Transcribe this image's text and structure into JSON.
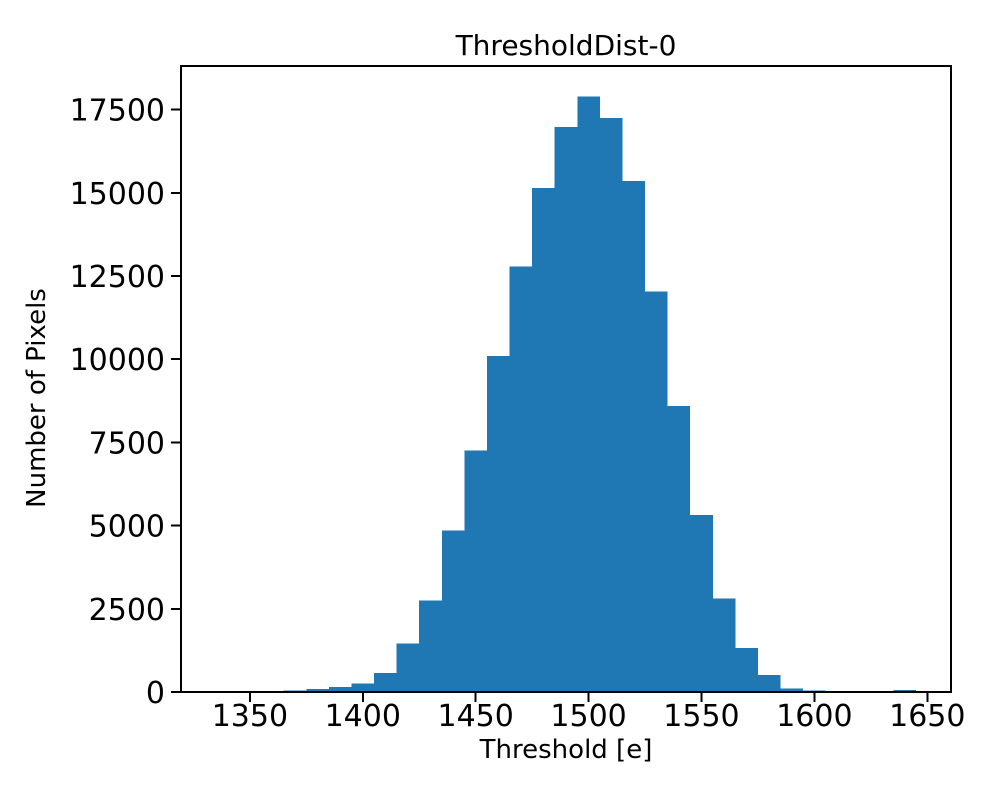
{
  "figure": {
    "background_color": "#ffffff",
    "axis_color": "#000000",
    "text_color": "#000000"
  },
  "chart_data": {
    "type": "bar",
    "subtype": "histogram",
    "title": "ThresholdDist-0",
    "xlabel": "Threshold [e]",
    "ylabel": "Number of Pixels",
    "bar_color": "#1f77b4",
    "grid": false,
    "legend": null,
    "xlim": [
      1319.5,
      1660.5
    ],
    "ylim": [
      0,
      18810
    ],
    "xticks": [
      1350,
      1400,
      1450,
      1500,
      1550,
      1600,
      1650
    ],
    "yticks": [
      0,
      2500,
      5000,
      7500,
      10000,
      12500,
      15000,
      17500
    ],
    "bin_width": 10,
    "bin_edges": [
      1335,
      1345,
      1355,
      1365,
      1375,
      1385,
      1395,
      1405,
      1415,
      1425,
      1435,
      1445,
      1455,
      1465,
      1475,
      1485,
      1495,
      1505,
      1515,
      1525,
      1535,
      1545,
      1555,
      1565,
      1575,
      1585,
      1595,
      1605,
      1615,
      1625,
      1635,
      1645
    ],
    "counts": [
      30,
      30,
      35,
      45,
      85,
      145,
      250,
      570,
      1450,
      2750,
      4850,
      7250,
      10100,
      12780,
      15150,
      16980,
      17900,
      17250,
      15360,
      12030,
      8600,
      5320,
      2810,
      1320,
      510,
      100,
      45,
      30,
      20,
      0,
      55
    ]
  }
}
